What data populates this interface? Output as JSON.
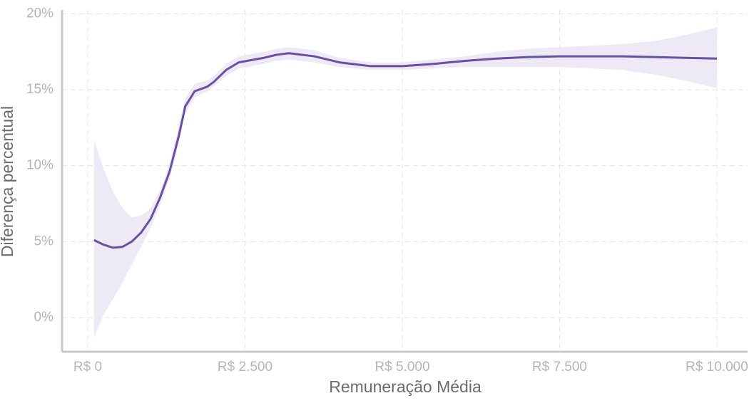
{
  "chart_data": {
    "type": "line",
    "xlabel": "Remuneração Média",
    "ylabel": "Diferença percentual",
    "x": [
      100,
      250,
      400,
      550,
      700,
      850,
      1000,
      1150,
      1300,
      1450,
      1550,
      1700,
      1900,
      2000,
      2200,
      2400,
      2800,
      3000,
      3200,
      3600,
      4000,
      4500,
      5000,
      5500,
      6000,
      6500,
      7000,
      7500,
      8000,
      8500,
      9000,
      9500,
      10000
    ],
    "values": [
      5.1,
      4.8,
      4.6,
      4.65,
      5.0,
      5.6,
      6.5,
      7.9,
      9.6,
      12.0,
      13.9,
      14.9,
      15.2,
      15.5,
      16.3,
      16.8,
      17.1,
      17.3,
      17.4,
      17.2,
      16.8,
      16.55,
      16.55,
      16.7,
      16.9,
      17.05,
      17.15,
      17.2,
      17.2,
      17.2,
      17.15,
      17.1,
      17.05
    ],
    "band": {
      "lower": [
        -1.3,
        0.2,
        1.2,
        2.3,
        3.5,
        4.7,
        5.9,
        7.4,
        9.1,
        11.5,
        13.4,
        14.5,
        14.9,
        15.2,
        15.9,
        16.4,
        16.7,
        16.9,
        17.0,
        16.8,
        16.5,
        16.3,
        16.3,
        16.4,
        16.5,
        16.5,
        16.5,
        16.5,
        16.4,
        16.3,
        16.0,
        15.6,
        15.1
      ],
      "upper": [
        11.7,
        9.8,
        8.3,
        7.2,
        6.6,
        6.7,
        7.2,
        8.4,
        10.1,
        12.6,
        14.4,
        15.4,
        15.6,
        15.9,
        16.7,
        17.2,
        17.5,
        17.7,
        17.8,
        17.6,
        17.1,
        16.8,
        16.8,
        17.0,
        17.2,
        17.5,
        17.7,
        17.8,
        17.9,
        18.0,
        18.2,
        18.6,
        19.1
      ],
      "color": "#e9e4f2"
    },
    "color": "#6a4fa3",
    "xlim": [
      -408,
      10488
    ],
    "ylim": [
      -2.25,
      20.25
    ],
    "xticks": [
      {
        "value": 0,
        "label": "R$ 0"
      },
      {
        "value": 2500,
        "label": "R$ 2.500"
      },
      {
        "value": 5000,
        "label": "R$ 5.000"
      },
      {
        "value": 7500,
        "label": "R$ 7.500"
      },
      {
        "value": 10000,
        "label": "R$ 10.000"
      }
    ],
    "yticks": [
      {
        "value": 0,
        "label": "0%"
      },
      {
        "value": 5,
        "label": "5%"
      },
      {
        "value": 10,
        "label": "10%"
      },
      {
        "value": 15,
        "label": "15%"
      },
      {
        "value": 20,
        "label": "20%"
      }
    ],
    "grid": true
  }
}
